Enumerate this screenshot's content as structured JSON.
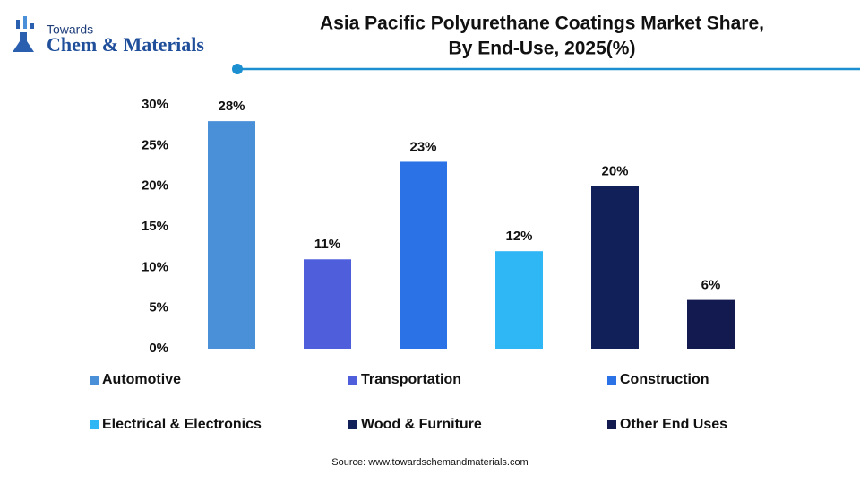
{
  "logo": {
    "small": "Towards",
    "main": "Chem & Materials"
  },
  "chart_data": {
    "type": "bar",
    "title": [
      "Asia Pacific Polyurethane Coatings Market Share,",
      "By End-Use, 2025(%)"
    ],
    "categories": [
      "Automotive",
      "Transportation",
      "Construction",
      "Electrical & Electronics",
      "Wood & Furniture",
      "Other End Uses"
    ],
    "values": [
      28,
      11,
      23,
      12,
      20,
      6
    ],
    "value_labels": [
      "28%",
      "11%",
      "23%",
      "12%",
      "20%",
      "6%"
    ],
    "colors": [
      "#4a90d9",
      "#4f5fdc",
      "#2a72e6",
      "#2fb6f5",
      "#12205a",
      "#121a4f"
    ],
    "ylim": [
      0,
      30
    ],
    "yticks": [
      {
        "value": 0,
        "label": "0%"
      },
      {
        "value": 5,
        "label": "5%"
      },
      {
        "value": 10,
        "label": "10%"
      },
      {
        "value": 15,
        "label": "15%"
      },
      {
        "value": 20,
        "label": "20%"
      },
      {
        "value": 25,
        "label": "25%"
      },
      {
        "value": 30,
        "label": "30%"
      }
    ],
    "grid": false,
    "source": "Source: www.towardschemandmaterials.com"
  }
}
